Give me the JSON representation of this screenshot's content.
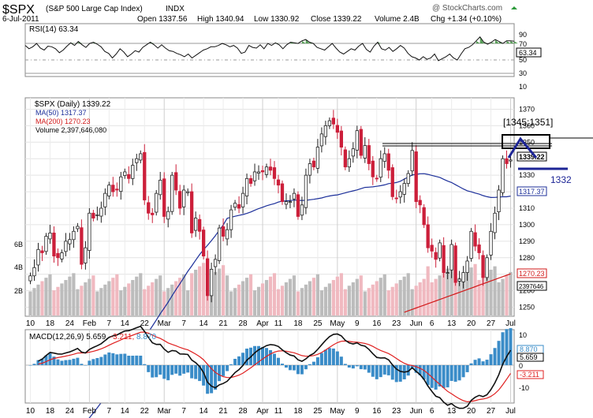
{
  "header": {
    "symbol": "$SPX",
    "name": "(S&P 500 Large Cap Index)",
    "exchange": "INDX",
    "date": "6-Jul-2011",
    "open": "Open 1337.56",
    "high": "High 1340.94",
    "low": "Low 1330.92",
    "close": "Close 1339.22",
    "volume": "Volume 2.4B",
    "chg": "Chg +1.34 (+0.10%)",
    "watermark": "@ StockCharts.com"
  },
  "rsi": {
    "label": "RSI(14) 63.34",
    "ticks": [
      "90",
      "70",
      "50",
      "30",
      "10"
    ],
    "value_label": "63.34",
    "series": [
      57,
      52,
      55,
      60,
      53,
      50,
      56,
      55,
      52,
      46,
      50,
      56,
      61,
      57,
      63,
      58,
      54,
      60,
      62,
      59,
      55,
      48,
      45,
      38,
      44,
      52,
      47,
      40,
      44,
      49,
      47,
      54,
      58,
      62,
      58,
      53,
      58,
      53,
      49,
      48,
      45,
      43,
      40,
      44,
      38,
      42,
      46,
      50,
      52,
      55,
      55,
      57,
      60,
      58,
      55,
      57,
      53,
      45,
      47,
      57,
      54,
      53,
      58,
      52,
      60,
      57,
      61,
      58,
      52,
      58,
      62,
      61,
      60,
      64,
      66,
      62,
      60,
      54,
      52,
      50,
      55,
      60,
      53,
      47,
      44,
      48,
      52,
      50,
      56,
      60,
      51,
      47,
      56,
      62,
      52,
      50,
      54,
      48,
      52,
      57,
      53,
      45,
      40,
      38,
      35,
      40,
      36,
      38,
      44,
      34,
      37,
      40,
      44,
      38,
      35,
      44,
      52,
      54,
      58,
      64,
      70,
      62,
      59,
      62,
      66,
      63,
      60,
      64,
      64,
      63.34
    ]
  },
  "price": {
    "label": "$SPX (Daily) 1339.22",
    "ma50_label": "MA(50) 1317.37",
    "ma200_label": "MA(200) 1270.23",
    "volume_label": "Volume 2,397,646,080",
    "price_ticks": [
      "1370",
      "1360",
      "1350",
      "1340",
      "1330",
      "1320",
      "1310",
      "1300",
      "1290",
      "1280",
      "1270",
      "1260",
      "1250"
    ],
    "volume_ticks": [
      "6B",
      "4B",
      "2B"
    ],
    "close_label": "1339.22",
    "ma50_value_label": "1317.37",
    "ma200_value_label": "1270.23",
    "volume_value_label": "2397646"
  },
  "macd": {
    "label": "MACD(12,26,9) 5.659, -3.211, 8.870",
    "label_macd": "MACD(12,26,9) 5.659, ",
    "label_signal": "-3.211, ",
    "label_hist": "8.870",
    "ticks": [
      "10",
      "0",
      "-10"
    ],
    "macd_label": "5.659",
    "signal_label": "-3.211",
    "hist_label": "8.870"
  },
  "annotations": {
    "range_text": "[1345;1351]",
    "level_text": "1332"
  },
  "x_axis": {
    "labels": [
      "10",
      "18",
      "24",
      "Feb",
      "7",
      "14",
      "22",
      "Mar",
      "7",
      "14",
      "21",
      "28",
      "Apr",
      "11",
      "18",
      "25",
      "May",
      "9",
      "16",
      "23",
      "Jun",
      "6",
      "13",
      "20",
      "27",
      "Jul"
    ]
  },
  "colors": {
    "up": "#222222",
    "down": "#cc1f3a",
    "ma50": "#1c2f9a",
    "ma200": "#d21a1a",
    "volume_up": "#bcbcbc",
    "volume_down": "#f0b9c0",
    "histogram": "#3a8cc8",
    "annotation": "#1d2596"
  },
  "chart_data": {
    "type": "candlestick",
    "title": "$SPX (S&P 500 Large Cap Index)",
    "range": "2011-01-10 to 2011-07-06",
    "dates": [
      "2011-01-10",
      "2011-01-11",
      "2011-01-12",
      "2011-01-13",
      "2011-01-14",
      "2011-01-18",
      "2011-01-19",
      "2011-01-20",
      "2011-01-21",
      "2011-01-24",
      "2011-01-25",
      "2011-01-26",
      "2011-01-27",
      "2011-01-28",
      "2011-01-31",
      "2011-02-01",
      "2011-02-02",
      "2011-02-03",
      "2011-02-04",
      "2011-02-07",
      "2011-02-08",
      "2011-02-09",
      "2011-02-10",
      "2011-02-11",
      "2011-02-14",
      "2011-02-15",
      "2011-02-16",
      "2011-02-17",
      "2011-02-18",
      "2011-02-22",
      "2011-02-23",
      "2011-02-24",
      "2011-02-25",
      "2011-02-28",
      "2011-03-01",
      "2011-03-02",
      "2011-03-03",
      "2011-03-04",
      "2011-03-07",
      "2011-03-08",
      "2011-03-09",
      "2011-03-10",
      "2011-03-11",
      "2011-03-14",
      "2011-03-15",
      "2011-03-16",
      "2011-03-17",
      "2011-03-18",
      "2011-03-21",
      "2011-03-22",
      "2011-03-23",
      "2011-03-24",
      "2011-03-25",
      "2011-03-28",
      "2011-03-29",
      "2011-03-30",
      "2011-03-31",
      "2011-04-01",
      "2011-04-04",
      "2011-04-05",
      "2011-04-06",
      "2011-04-07",
      "2011-04-08",
      "2011-04-11",
      "2011-04-12",
      "2011-04-13",
      "2011-04-14",
      "2011-04-15",
      "2011-04-18",
      "2011-04-19",
      "2011-04-20",
      "2011-04-21",
      "2011-04-25",
      "2011-04-26",
      "2011-04-27",
      "2011-04-28",
      "2011-04-29",
      "2011-05-02",
      "2011-05-03",
      "2011-05-04",
      "2011-05-05",
      "2011-05-06",
      "2011-05-09",
      "2011-05-10",
      "2011-05-11",
      "2011-05-12",
      "2011-05-13",
      "2011-05-16",
      "2011-05-17",
      "2011-05-18",
      "2011-05-19",
      "2011-05-20",
      "2011-05-23",
      "2011-05-24",
      "2011-05-25",
      "2011-05-26",
      "2011-05-27",
      "2011-05-31",
      "2011-06-01",
      "2011-06-02",
      "2011-06-03",
      "2011-06-06",
      "2011-06-07",
      "2011-06-08",
      "2011-06-09",
      "2011-06-10",
      "2011-06-13",
      "2011-06-14",
      "2011-06-15",
      "2011-06-16",
      "2011-06-17",
      "2011-06-20",
      "2011-06-21",
      "2011-06-22",
      "2011-06-23",
      "2011-06-24",
      "2011-06-27",
      "2011-06-28",
      "2011-06-29",
      "2011-06-30",
      "2011-07-01",
      "2011-07-05",
      "2011-07-06"
    ],
    "close": [
      1269,
      1274,
      1285,
      1283,
      1293,
      1295,
      1281,
      1280,
      1283,
      1290,
      1291,
      1296,
      1299,
      1276,
      1286,
      1307,
      1304,
      1306,
      1310,
      1319,
      1324,
      1320,
      1321,
      1329,
      1332,
      1328,
      1336,
      1340,
      1343,
      1315,
      1307,
      1306,
      1319,
      1327,
      1305,
      1308,
      1330,
      1321,
      1310,
      1321,
      1320,
      1295,
      1304,
      1296,
      1281,
      1257,
      1273,
      1279,
      1298,
      1293,
      1297,
      1309,
      1313,
      1310,
      1319,
      1328,
      1325,
      1332,
      1332,
      1332,
      1335,
      1333,
      1328,
      1324,
      1314,
      1314,
      1314,
      1319,
      1305,
      1312,
      1330,
      1337,
      1335,
      1347,
      1355,
      1360,
      1363,
      1361,
      1356,
      1347,
      1335,
      1340,
      1346,
      1357,
      1342,
      1348,
      1337,
      1329,
      1328,
      1340,
      1343,
      1333,
      1317,
      1316,
      1320,
      1325,
      1331,
      1345,
      1314,
      1312,
      1300,
      1286,
      1284,
      1279,
      1289,
      1271,
      1271,
      1288,
      1265,
      1267,
      1271,
      1278,
      1296,
      1287,
      1283,
      1268,
      1280,
      1296,
      1307,
      1321,
      1340,
      1337,
      1339.22
    ],
    "ma50_end": 1317.37,
    "ma200_end": 1270.23,
    "volume_end": 2397646080,
    "rsi_end": 63.34,
    "macd": 5.659,
    "macd_signal": -3.211,
    "macd_histogram": 8.87,
    "ylim": [
      1245,
      1375
    ],
    "annotation_levels": {
      "range": [
        1345,
        1351
      ],
      "support": 1332
    }
  }
}
